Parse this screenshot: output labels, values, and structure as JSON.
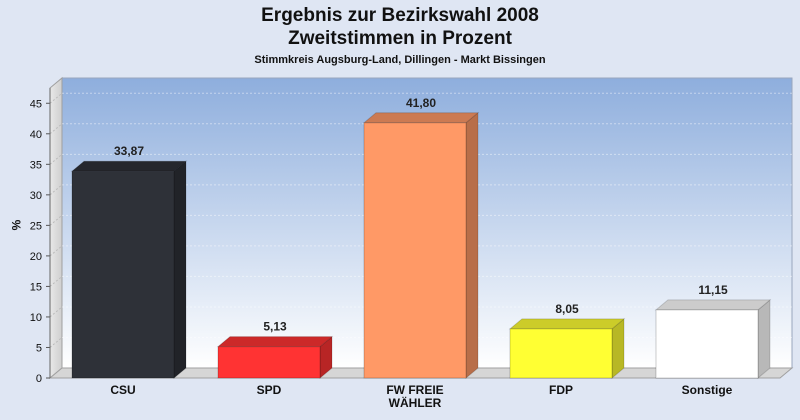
{
  "chart_data": {
    "type": "bar",
    "title_lines": [
      "Ergebnis zur Bezirkswahl 2008",
      "Zweitstimmen in Prozent"
    ],
    "subtitle": "Stimmkreis Augsburg-Land, Dillingen - Markt Bissingen",
    "ylabel": "%",
    "xlabel": "",
    "ylim": [
      0,
      47.5
    ],
    "yticks": [
      0,
      5,
      10,
      15,
      20,
      25,
      30,
      35,
      40,
      45
    ],
    "grid": true,
    "categories": [
      [
        "CSU"
      ],
      [
        "SPD"
      ],
      [
        "FW FREIE",
        "WÄHLER"
      ],
      [
        "FDP"
      ],
      [
        "Sonstige"
      ]
    ],
    "values": [
      33.87,
      5.13,
      41.8,
      8.05,
      11.15
    ],
    "value_labels": [
      "33,87",
      "5,13",
      "41,80",
      "8,05",
      "11,15"
    ],
    "colors": [
      "#2e3138",
      "#ff3333",
      "#ff9966",
      "#ffff33",
      "#ffffff"
    ]
  }
}
